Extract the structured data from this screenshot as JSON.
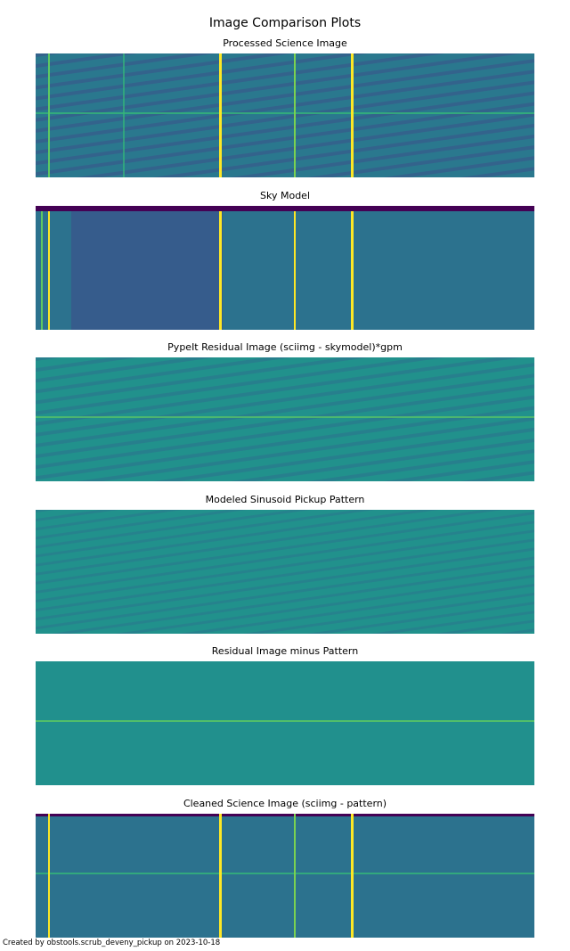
{
  "figure": {
    "title": "Image Comparison Plots",
    "footer": "Created by obstools.scrub_deveny_pickup on 2023-10-18"
  },
  "chart_data": [
    {
      "type": "heatmap",
      "title": "Processed Science Image",
      "colormap": "viridis",
      "axes": "off"
    },
    {
      "type": "heatmap",
      "title": "Sky Model",
      "colormap": "viridis",
      "axes": "off"
    },
    {
      "type": "heatmap",
      "title": "PypeIt Residual Image (sciimg - skymodel)*gpm",
      "colormap": "viridis",
      "axes": "off"
    },
    {
      "type": "heatmap",
      "title": "Modeled Sinusoid Pickup Pattern",
      "colormap": "viridis",
      "axes": "off"
    },
    {
      "type": "heatmap",
      "title": "Residual Image minus Pattern",
      "colormap": "viridis",
      "axes": "off"
    },
    {
      "type": "heatmap",
      "title": "Cleaned Science Image (sciimg - pattern)",
      "colormap": "viridis",
      "axes": "off"
    }
  ],
  "colors": {
    "viridis_dark": "#440154",
    "viridis_blue": "#3b528b",
    "viridis_teal": "#21918c",
    "viridis_green": "#5ec962",
    "viridis_yellow": "#fde725"
  }
}
